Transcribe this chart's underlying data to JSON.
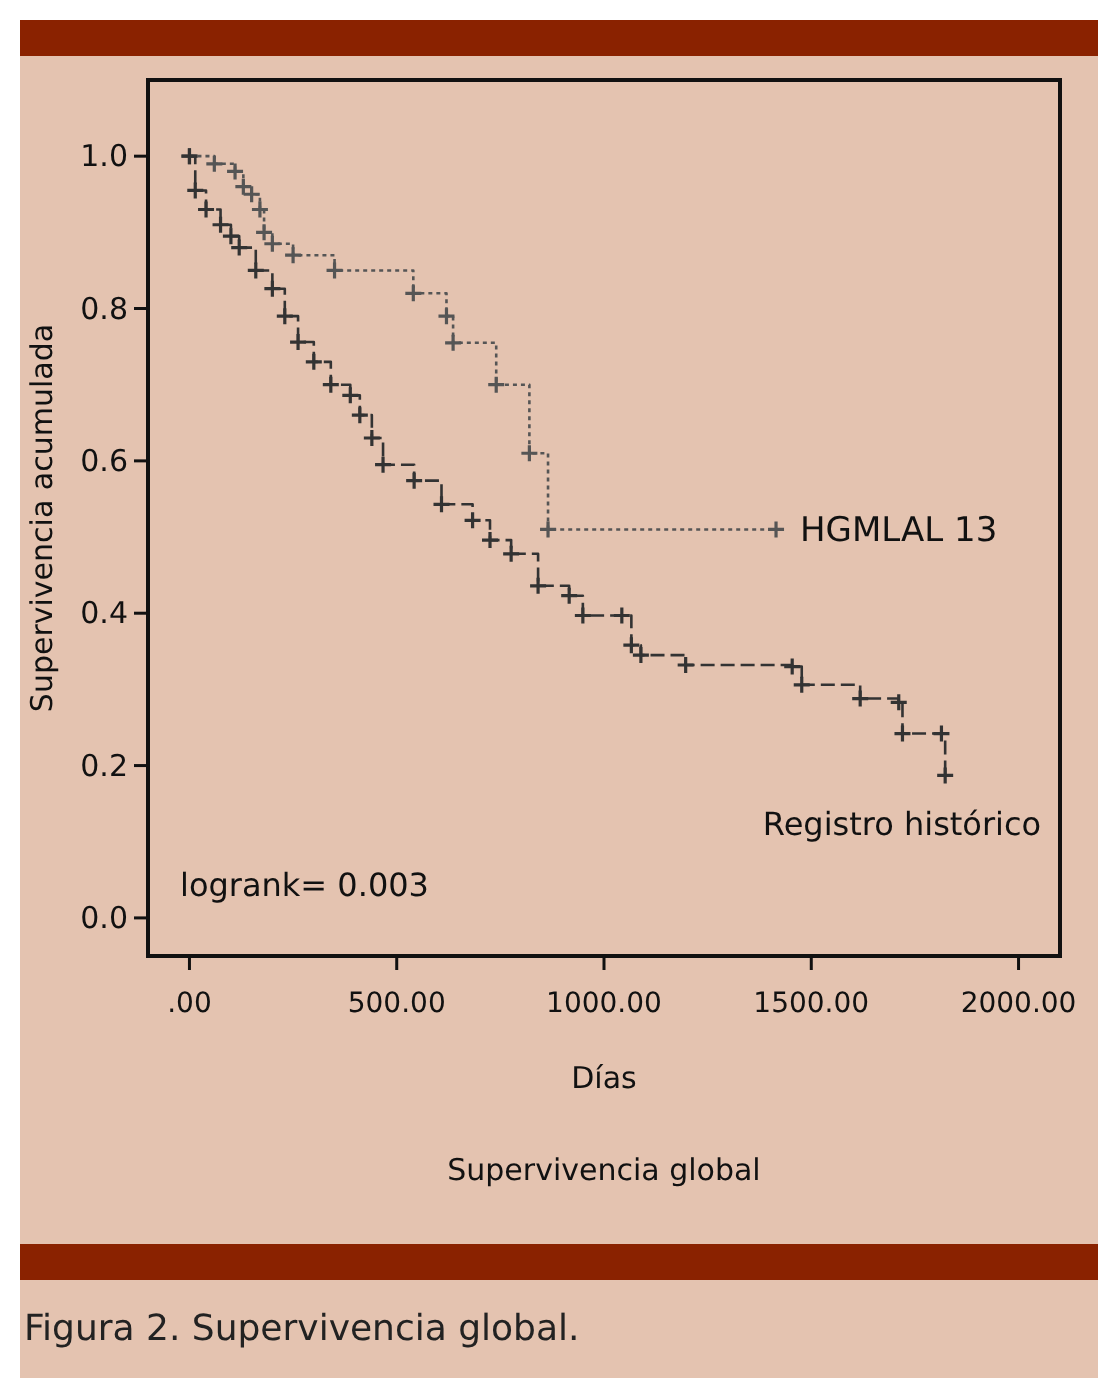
{
  "chart_data": {
    "type": "step",
    "title": "Supervivencia global",
    "xlabel": "Días",
    "ylabel": "Supervivencia acumulada",
    "annotations": [
      "logrank= 0.003",
      "Figura 2. Supervivencia global."
    ],
    "xlim": [
      -100,
      2100
    ],
    "ylim": [
      -0.05,
      1.1
    ],
    "xticks": [
      {
        "value": 0,
        "label": ".00"
      },
      {
        "value": 500,
        "label": "500.00"
      },
      {
        "value": 1000,
        "label": "1000.00"
      },
      {
        "value": 1500,
        "label": "1500.00"
      },
      {
        "value": 2000,
        "label": "2000.00"
      }
    ],
    "yticks": [
      {
        "value": 0,
        "label": "0.0"
      },
      {
        "value": 0.2,
        "label": "0.2"
      },
      {
        "value": 0.4,
        "label": "0.4"
      },
      {
        "value": 0.6,
        "label": "0.6"
      },
      {
        "value": 0.8,
        "label": "0.8"
      },
      {
        "value": 1,
        "label": "1.0"
      }
    ],
    "grid": false,
    "marker": "cross",
    "series": [
      {
        "name": "HGMLAL 13",
        "color": "#555555",
        "line_style": "dotted",
        "x": [
          0,
          60,
          110,
          130,
          150,
          170,
          180,
          200,
          250,
          350,
          540,
          620,
          636,
          740,
          820,
          865,
          1415
        ],
        "values": [
          1.0,
          0.99,
          0.98,
          0.96,
          0.95,
          0.93,
          0.9,
          0.885,
          0.87,
          0.85,
          0.82,
          0.79,
          0.755,
          0.7,
          0.61,
          0.51,
          0.51
        ]
      },
      {
        "name": "Registro histórico",
        "color": "#333333",
        "line_style": "dashed",
        "x": [
          0,
          14,
          40,
          75,
          100,
          120,
          160,
          200,
          230,
          262,
          300,
          341,
          388,
          411,
          440,
          467,
          542,
          608,
          683,
          725,
          776,
          841,
          916,
          949,
          1043,
          1066,
          1089,
          1197,
          1454,
          1477,
          1618,
          1711,
          1720,
          1814,
          1823
        ],
        "values": [
          1.0,
          0.955,
          0.93,
          0.91,
          0.895,
          0.88,
          0.85,
          0.826,
          0.79,
          0.756,
          0.73,
          0.7,
          0.686,
          0.66,
          0.63,
          0.595,
          0.574,
          0.543,
          0.522,
          0.496,
          0.478,
          0.436,
          0.423,
          0.397,
          0.397,
          0.358,
          0.345,
          0.332,
          0.33,
          0.306,
          0.288,
          0.283,
          0.242,
          0.242,
          0.187
        ]
      }
    ]
  }
}
